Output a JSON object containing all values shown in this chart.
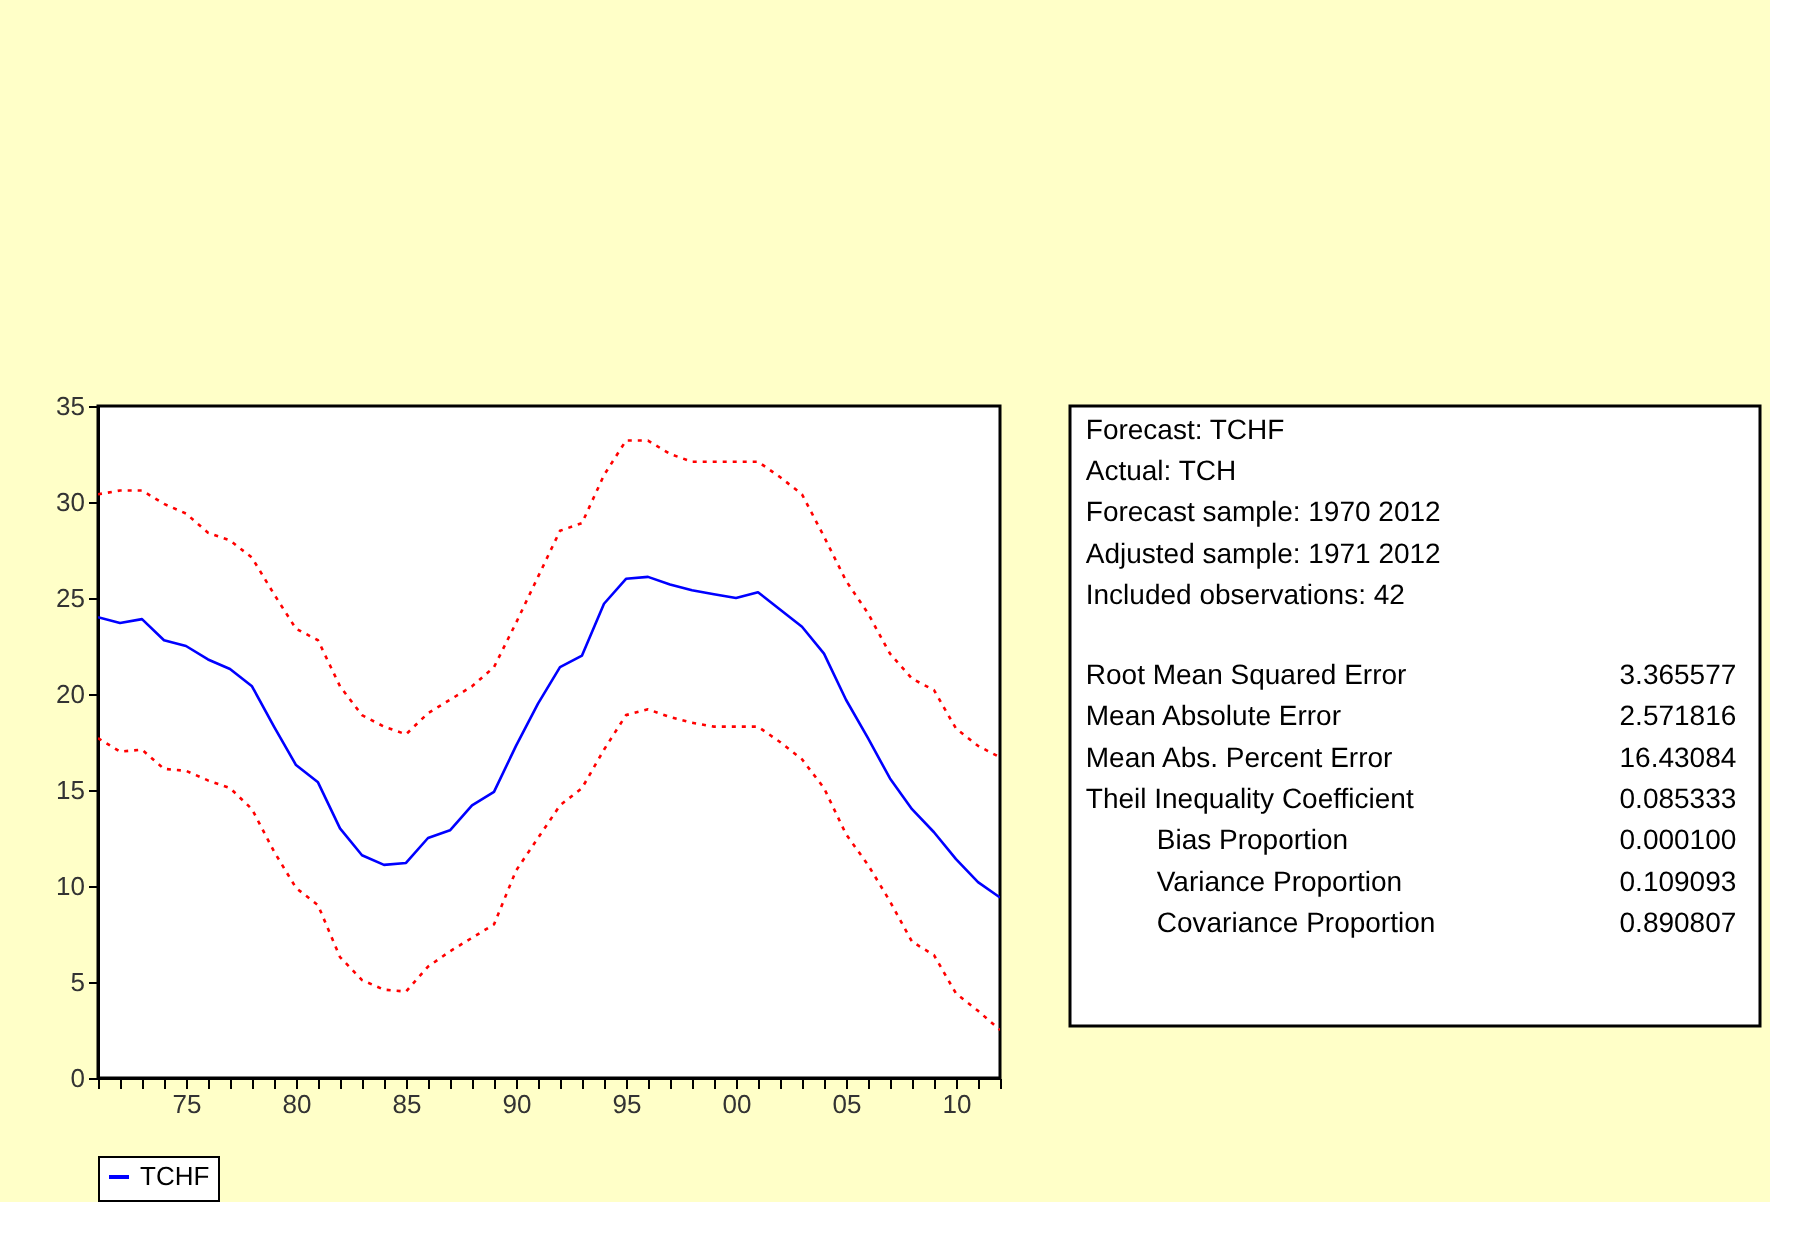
{
  "chart_data": {
    "type": "line",
    "x": [
      1971,
      1972,
      1973,
      1974,
      1975,
      1976,
      1977,
      1978,
      1979,
      1980,
      1981,
      1982,
      1983,
      1984,
      1985,
      1986,
      1987,
      1988,
      1989,
      1990,
      1991,
      1992,
      1993,
      1994,
      1995,
      1996,
      1997,
      1998,
      1999,
      2000,
      2001,
      2002,
      2003,
      2004,
      2005,
      2006,
      2007,
      2008,
      2009,
      2010,
      2011,
      2012
    ],
    "series": [
      {
        "name": "TCHF",
        "color": "#0000ff",
        "line_style": "solid",
        "values": [
          24.0,
          23.7,
          23.9,
          22.8,
          22.5,
          21.8,
          21.3,
          20.4,
          18.3,
          16.3,
          15.4,
          13.0,
          11.6,
          11.1,
          11.2,
          12.5,
          12.9,
          14.2,
          14.9,
          17.3,
          19.5,
          21.4,
          22.0,
          24.7,
          26.0,
          26.1,
          25.7,
          25.4,
          25.2,
          25.0,
          25.3,
          24.4,
          23.5,
          22.1,
          19.7,
          17.7,
          15.6,
          14.0,
          12.8,
          11.4,
          10.2,
          9.4
        ]
      },
      {
        "color": "#ff0000",
        "line_style": "dotted",
        "values": [
          30.4,
          30.6,
          30.6,
          29.9,
          29.4,
          28.4,
          28.0,
          27.1,
          25.2,
          23.4,
          22.8,
          20.4,
          18.9,
          18.3,
          17.9,
          19.0,
          19.7,
          20.4,
          21.4,
          23.7,
          26.1,
          28.5,
          28.9,
          31.4,
          33.2,
          33.2,
          32.5,
          32.1,
          32.1,
          32.1,
          32.1,
          31.3,
          30.4,
          28.2,
          25.9,
          24.2,
          22.1,
          20.8,
          20.2,
          18.2,
          17.3,
          16.7
        ]
      },
      {
        "color": "#ff0000",
        "line_style": "dotted",
        "values": [
          17.7,
          17.0,
          17.1,
          16.1,
          16.0,
          15.5,
          15.1,
          14.0,
          11.8,
          9.9,
          9.0,
          6.3,
          5.1,
          4.6,
          4.5,
          5.8,
          6.6,
          7.3,
          8.0,
          10.8,
          12.5,
          14.2,
          15.1,
          17.1,
          18.9,
          19.2,
          18.8,
          18.5,
          18.3,
          18.3,
          18.3,
          17.5,
          16.6,
          15.1,
          12.7,
          11.1,
          9.2,
          7.1,
          6.4,
          4.4,
          3.5,
          2.5
        ]
      }
    ],
    "xlim": [
      1971,
      2012
    ],
    "xticks": [
      {
        "value": 1971,
        "label": null
      },
      {
        "value": 1972,
        "label": null
      },
      {
        "value": 1973,
        "label": null
      },
      {
        "value": 1974,
        "label": null
      },
      {
        "value": 1975,
        "label": "75"
      },
      {
        "value": 1976,
        "label": null
      },
      {
        "value": 1977,
        "label": null
      },
      {
        "value": 1978,
        "label": null
      },
      {
        "value": 1979,
        "label": null
      },
      {
        "value": 1980,
        "label": "80"
      },
      {
        "value": 1981,
        "label": null
      },
      {
        "value": 1982,
        "label": null
      },
      {
        "value": 1983,
        "label": null
      },
      {
        "value": 1984,
        "label": null
      },
      {
        "value": 1985,
        "label": "85"
      },
      {
        "value": 1986,
        "label": null
      },
      {
        "value": 1987,
        "label": null
      },
      {
        "value": 1988,
        "label": null
      },
      {
        "value": 1989,
        "label": null
      },
      {
        "value": 1990,
        "label": "90"
      },
      {
        "value": 1991,
        "label": null
      },
      {
        "value": 1992,
        "label": null
      },
      {
        "value": 1993,
        "label": null
      },
      {
        "value": 1994,
        "label": null
      },
      {
        "value": 1995,
        "label": "95"
      },
      {
        "value": 1996,
        "label": null
      },
      {
        "value": 1997,
        "label": null
      },
      {
        "value": 1998,
        "label": null
      },
      {
        "value": 1999,
        "label": null
      },
      {
        "value": 2000,
        "label": "00"
      },
      {
        "value": 2001,
        "label": null
      },
      {
        "value": 2002,
        "label": null
      },
      {
        "value": 2003,
        "label": null
      },
      {
        "value": 2004,
        "label": null
      },
      {
        "value": 2005,
        "label": "05"
      },
      {
        "value": 2006,
        "label": null
      },
      {
        "value": 2007,
        "label": null
      },
      {
        "value": 2008,
        "label": null
      },
      {
        "value": 2009,
        "label": null
      },
      {
        "value": 2010,
        "label": "10"
      },
      {
        "value": 2011,
        "label": null
      },
      {
        "value": 2012,
        "label": null
      }
    ],
    "ylim": [
      0,
      35
    ],
    "yticks": [
      0,
      5,
      10,
      15,
      20,
      25,
      30,
      35
    ],
    "grid": false,
    "legend": "bottom",
    "annotations": [
      "Forecast: TCHF",
      "Actual: TCH",
      "Forecast sample: 1970 2012",
      "Adjusted sample: 1971 2012",
      "Included observations: 42",
      "Root Mean Squared Error",
      "3.365577",
      "Mean Absolute Error",
      "2.571816",
      "Mean Abs. Percent Error",
      "16.43084",
      "Theil Inequality Coefficient",
      "0.085333",
      "Bias Proportion",
      "0.000100",
      "Variance Proportion",
      "0.109093",
      "Covariance Proportion",
      "0.890807"
    ]
  }
}
